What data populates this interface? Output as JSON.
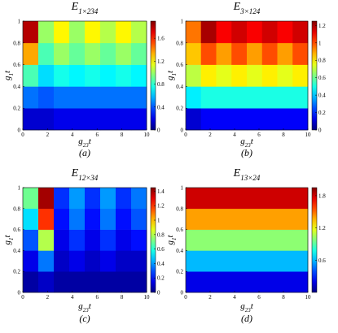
{
  "chart_data": [
    {
      "type": "heatmap",
      "colormap": "jet",
      "title": {
        "base": "E",
        "sub": "1×234"
      },
      "xlabel": {
        "base": "g",
        "sub": "23",
        "tail": "t"
      },
      "ylabel": {
        "base": "g",
        "sub": "1",
        "tail": "t"
      },
      "caption": "(a)",
      "xlim": [
        0,
        10
      ],
      "ylim": [
        0,
        1
      ],
      "xticks": [
        0,
        2,
        4,
        6,
        8,
        10
      ],
      "yticks": [
        0,
        0.2,
        0.4,
        0.6,
        0.8,
        1
      ],
      "xbins": [
        0,
        1.25,
        2.5,
        3.75,
        5,
        6.25,
        7.5,
        8.75,
        10
      ],
      "ybins": [
        0,
        0.2,
        0.4,
        0.6,
        0.8,
        1
      ],
      "z": [
        [
          0.15,
          0.15,
          0.2,
          0.2,
          0.2,
          0.2,
          0.2,
          0.2
        ],
        [
          0.45,
          0.4,
          0.45,
          0.45,
          0.45,
          0.45,
          0.45,
          0.45
        ],
        [
          0.85,
          0.65,
          0.75,
          0.7,
          0.75,
          0.7,
          0.75,
          0.7
        ],
        [
          1.35,
          0.85,
          1.0,
          0.9,
          1.0,
          0.9,
          1.0,
          0.9
        ],
        [
          1.8,
          1.0,
          1.2,
          1.0,
          1.2,
          1.05,
          1.2,
          1.05
        ]
      ],
      "clim": [
        0,
        1.9
      ],
      "cticks": [
        0,
        0.4,
        0.8,
        1.2,
        1.6
      ]
    },
    {
      "type": "heatmap",
      "colormap": "jet",
      "title": {
        "base": "E",
        "sub": "3×124"
      },
      "xlabel": {
        "base": "g",
        "sub": "23",
        "tail": "t"
      },
      "ylabel": {
        "base": "g",
        "sub": "1",
        "tail": "t"
      },
      "caption": "(b)",
      "xlim": [
        0,
        10
      ],
      "ylim": [
        0,
        1
      ],
      "xticks": [
        0,
        2,
        4,
        6,
        8,
        10
      ],
      "yticks": [
        0,
        0.2,
        0.4,
        0.6,
        0.8,
        1
      ],
      "xbins": [
        0,
        1.25,
        2.5,
        3.75,
        5,
        6.25,
        7.5,
        8.75,
        10
      ],
      "ybins": [
        0,
        0.2,
        0.4,
        0.6,
        0.8,
        1
      ],
      "z": [
        [
          0.1,
          0.15,
          0.15,
          0.15,
          0.15,
          0.15,
          0.15,
          0.15
        ],
        [
          0.45,
          0.5,
          0.5,
          0.5,
          0.5,
          0.5,
          0.5,
          0.5
        ],
        [
          0.7,
          0.8,
          0.75,
          0.8,
          0.75,
          0.8,
          0.75,
          0.8
        ],
        [
          0.85,
          1.0,
          0.9,
          1.0,
          0.9,
          1.0,
          0.9,
          1.0
        ],
        [
          0.95,
          1.2,
          1.1,
          1.15,
          1.1,
          1.15,
          1.1,
          1.15
        ]
      ],
      "clim": [
        0,
        1.25
      ],
      "cticks": [
        0,
        0.2,
        0.4,
        0.6,
        0.8,
        1,
        1.2
      ]
    },
    {
      "type": "heatmap",
      "colormap": "jet",
      "title": {
        "base": "E",
        "sub": "12×34"
      },
      "xlabel": {
        "base": "g",
        "sub": "23",
        "tail": "t"
      },
      "ylabel": {
        "base": "g",
        "sub": "1",
        "tail": "t"
      },
      "caption": "(c)",
      "xlim": [
        0,
        10
      ],
      "ylim": [
        0,
        1
      ],
      "xticks": [
        0,
        2,
        4,
        6,
        8,
        10
      ],
      "yticks": [
        0,
        0.2,
        0.4,
        0.6,
        0.8,
        1
      ],
      "xbins": [
        0,
        1.25,
        2.5,
        3.75,
        5,
        6.25,
        7.5,
        8.75,
        10
      ],
      "ybins": [
        0,
        0.2,
        0.4,
        0.6,
        0.8,
        1
      ],
      "z": [
        [
          0.05,
          0.1,
          0.05,
          0.05,
          0.05,
          0.05,
          0.05,
          0.05
        ],
        [
          0.15,
          0.35,
          0.1,
          0.15,
          0.1,
          0.15,
          0.1,
          0.1
        ],
        [
          0.3,
          0.8,
          0.15,
          0.25,
          0.15,
          0.25,
          0.15,
          0.2
        ],
        [
          0.5,
          1.2,
          0.2,
          0.35,
          0.2,
          0.35,
          0.2,
          0.3
        ],
        [
          0.7,
          1.4,
          0.25,
          0.4,
          0.25,
          0.4,
          0.25,
          0.35
        ]
      ],
      "clim": [
        0,
        1.45
      ],
      "cticks": [
        0,
        0.2,
        0.4,
        0.6,
        0.8,
        1,
        1.2,
        1.4
      ]
    },
    {
      "type": "heatmap",
      "colormap": "jet",
      "title": {
        "base": "E",
        "sub": "13×24"
      },
      "xlabel": {
        "base": "g",
        "sub": "23",
        "tail": "t"
      },
      "ylabel": {
        "base": "g",
        "sub": "1",
        "tail": "t"
      },
      "caption": "(d)",
      "xlim": [
        0,
        10
      ],
      "ylim": [
        0,
        1
      ],
      "xticks": [
        0,
        2,
        4,
        6,
        8,
        10
      ],
      "yticks": [
        0,
        0.2,
        0.4,
        0.6,
        0.8,
        1
      ],
      "xbins": [
        0,
        10
      ],
      "ybins": [
        0,
        0.2,
        0.4,
        0.6,
        0.8,
        1
      ],
      "z": [
        [
          0.2
        ],
        [
          0.6
        ],
        [
          1.0
        ],
        [
          1.4
        ],
        [
          1.8
        ]
      ],
      "clim": [
        0,
        1.95
      ],
      "cticks": [
        0.6,
        1.2,
        1.8
      ]
    }
  ]
}
